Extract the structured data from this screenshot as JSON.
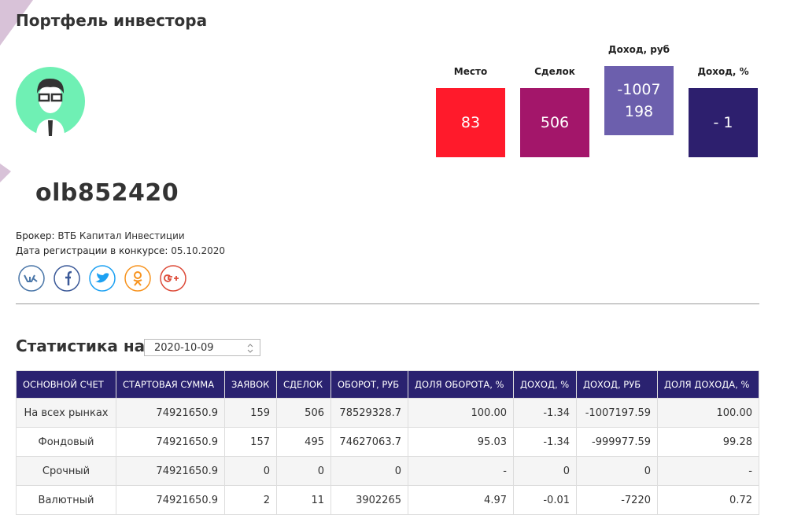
{
  "header": {
    "title": "Портфель инвестора"
  },
  "stats": [
    {
      "label": "Место",
      "value": "83"
    },
    {
      "label": "Сделок",
      "value": "506"
    },
    {
      "label": "Доход, руб",
      "value": "-1007198"
    },
    {
      "label": "Доход, %",
      "value": "- 1"
    }
  ],
  "profile": {
    "username": "olb852420",
    "broker_label": "Брокер:",
    "broker": "ВТБ Капитал Инвестиции",
    "date_label": "Дата регистрации в конкурсе:",
    "date": "05.10.2020"
  },
  "statistics": {
    "title": "Статистика на",
    "date": "2020-10-09"
  },
  "table": {
    "header": [
      "ОСНОВНОЙ СЧЕТ",
      "СТАРТОВАЯ СУММА",
      "ЗАЯВОК",
      "СДЕЛОК",
      "ОБОРОТ, РУБ",
      "ДОЛЯ ОБОРОТА, %",
      "ДОХОД, %",
      "ДОХОД, РУБ",
      "ДОЛЯ ДОХОДА, %"
    ],
    "rows": [
      [
        "На всех рынках",
        "74921650.9",
        "159",
        "506",
        "78529328.7",
        "100.00",
        "-1.34",
        "-1007197.59",
        "100.00"
      ],
      [
        "Фондовый",
        "74921650.9",
        "157",
        "495",
        "74627063.7",
        "95.03",
        "-1.34",
        "-999977.59",
        "99.28"
      ],
      [
        "Срочный",
        "74921650.9",
        "0",
        "0",
        "0",
        "-",
        "0",
        "0",
        "-"
      ],
      [
        "Валютный",
        "74921650.9",
        "2",
        "11",
        "3902265",
        "4.97",
        "-0.01",
        "-7220",
        "0.72"
      ]
    ]
  }
}
